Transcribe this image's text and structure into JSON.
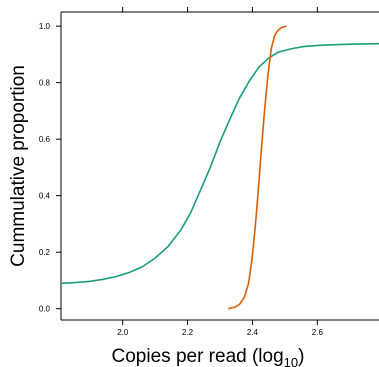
{
  "chart_data": {
    "type": "line",
    "xlabel": "Copies per read (log",
    "xlabel_sub": "10",
    "xlabel_close": ")",
    "ylabel": "Cummulative proportion",
    "xlim": [
      1.81,
      2.79
    ],
    "ylim": [
      -0.04,
      1.05
    ],
    "xticks": [
      2.0,
      2.2,
      2.4,
      2.6
    ],
    "xtick_labels": [
      "2.0",
      "2.2",
      "2.4",
      "2.6"
    ],
    "yticks": [
      0.0,
      0.2,
      0.4,
      0.6,
      0.8,
      1.0
    ],
    "ytick_labels": [
      "0.0",
      "0.2",
      "0.4",
      "0.6",
      "0.8",
      "1.0"
    ],
    "grid": false,
    "series": [
      {
        "color": "#1b9e77",
        "x": [
          1.81,
          1.86,
          1.9,
          1.94,
          1.98,
          2.02,
          2.06,
          2.1,
          2.14,
          2.18,
          2.21,
          2.24,
          2.27,
          2.3,
          2.33,
          2.36,
          2.39,
          2.42,
          2.45,
          2.48,
          2.52,
          2.56,
          2.62,
          2.7,
          2.79
        ],
        "y": [
          0.09,
          0.093,
          0.097,
          0.104,
          0.114,
          0.128,
          0.148,
          0.179,
          0.22,
          0.28,
          0.34,
          0.42,
          0.5,
          0.59,
          0.67,
          0.745,
          0.805,
          0.855,
          0.887,
          0.908,
          0.92,
          0.928,
          0.933,
          0.936,
          0.938
        ]
      },
      {
        "color": "#d95f02",
        "x": [
          2.325,
          2.345,
          2.36,
          2.375,
          2.388,
          2.398,
          2.408,
          2.418,
          2.428,
          2.438,
          2.448,
          2.458,
          2.468,
          2.478,
          2.49,
          2.505
        ],
        "y": [
          0.0,
          0.005,
          0.015,
          0.04,
          0.09,
          0.17,
          0.28,
          0.42,
          0.57,
          0.71,
          0.83,
          0.92,
          0.965,
          0.985,
          0.995,
          1.0
        ]
      }
    ]
  }
}
